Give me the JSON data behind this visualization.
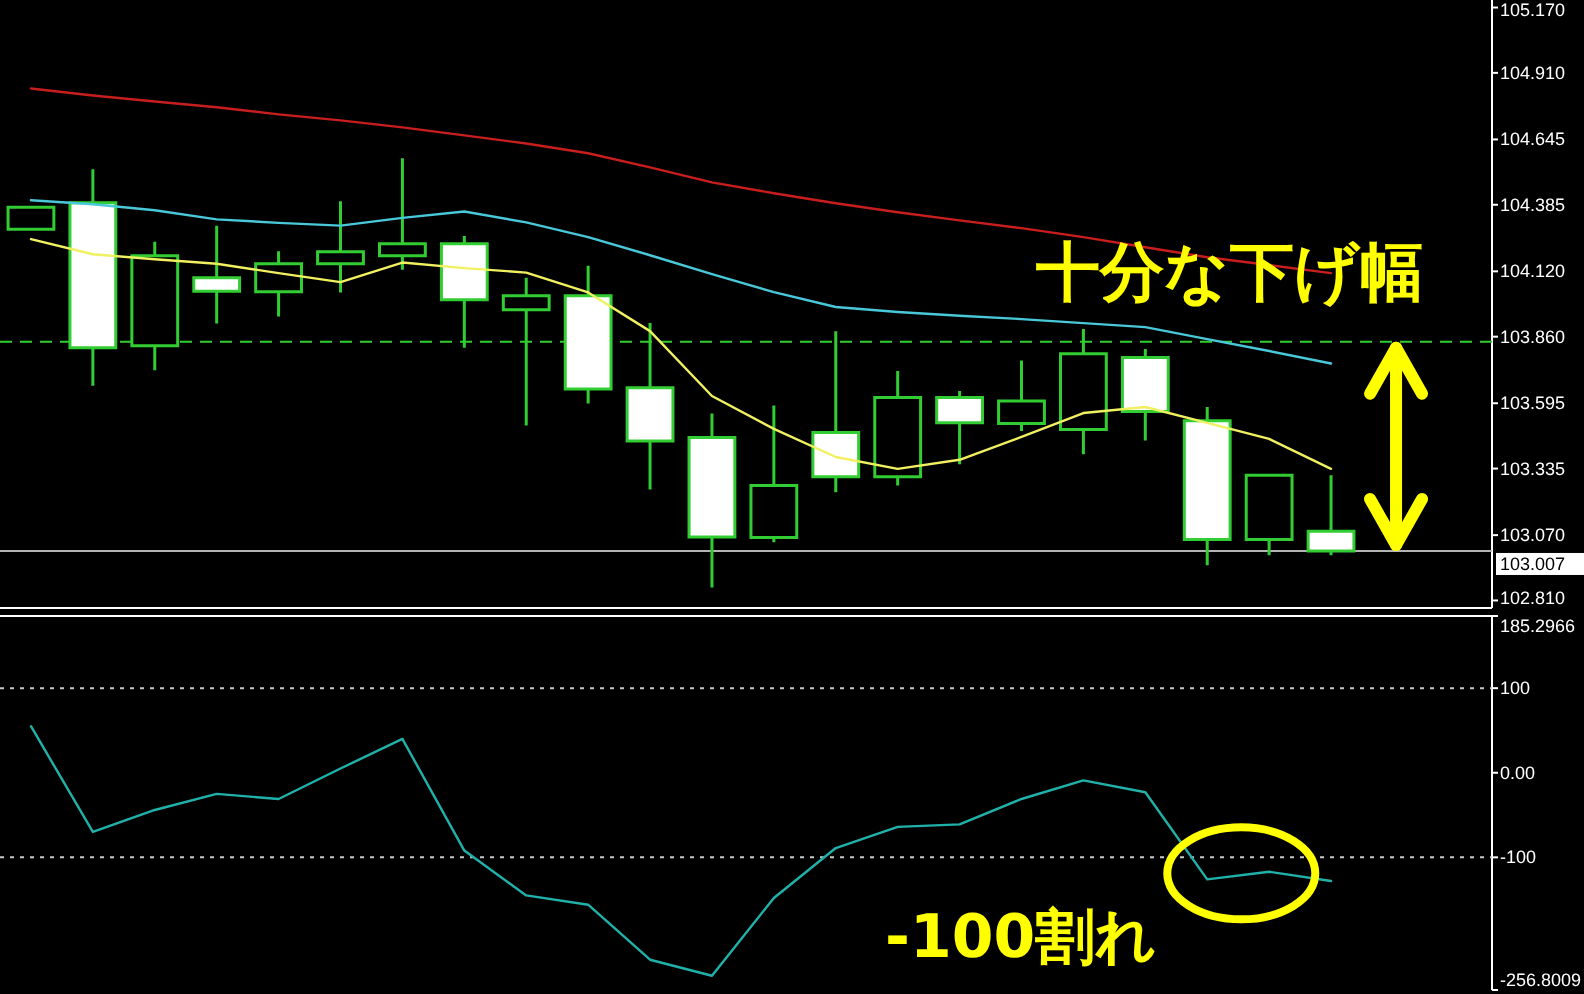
{
  "chart_data": [
    {
      "type": "candlestick",
      "categories": [
        null,
        null,
        null,
        null,
        null,
        null,
        null,
        null,
        null,
        null,
        null,
        null,
        null,
        null,
        null,
        null,
        null,
        null,
        null,
        null,
        null,
        null
      ],
      "ohlc": [
        [
          104.288,
          104.375,
          104.288,
          104.375
        ],
        [
          104.393,
          104.526,
          103.665,
          103.816
        ],
        [
          103.824,
          104.238,
          103.726,
          104.182
        ],
        [
          104.094,
          104.301,
          103.912,
          104.041
        ],
        [
          104.039,
          104.2,
          103.94,
          104.15
        ],
        [
          104.15,
          104.399,
          104.036,
          104.198
        ],
        [
          104.182,
          104.57,
          104.126,
          104.23
        ],
        [
          104.23,
          104.261,
          103.816,
          104.007
        ],
        [
          103.967,
          104.094,
          103.506,
          104.023
        ],
        [
          104.023,
          104.142,
          103.594,
          103.652
        ],
        [
          103.657,
          103.914,
          103.252,
          103.445
        ],
        [
          103.459,
          103.554,
          102.862,
          103.063
        ],
        [
          103.061,
          103.586,
          103.042,
          103.268
        ],
        [
          103.479,
          103.882,
          103.241,
          103.302
        ],
        [
          103.302,
          103.723,
          103.268,
          103.618
        ],
        [
          103.618,
          103.644,
          103.352,
          103.517
        ],
        [
          103.514,
          103.765,
          103.485,
          103.604
        ],
        [
          103.49,
          103.89,
          103.392,
          103.792
        ],
        [
          103.777,
          103.811,
          103.447,
          103.562
        ],
        [
          103.525,
          103.58,
          102.95,
          103.053
        ],
        [
          103.053,
          103.308,
          102.99,
          103.308
        ],
        [
          103.085,
          103.308,
          102.99,
          103.007
        ]
      ],
      "color": "#32cd32",
      "colors": [
        "#000000",
        "#ffffff",
        "#000000",
        "#ffffff",
        "#000000",
        "#000000",
        "#000000",
        "#ffffff",
        "#000000",
        "#ffffff",
        "#ffffff",
        "#ffffff",
        "#000000",
        "#ffffff",
        "#000000",
        "#ffffff",
        "#000000",
        "#000000",
        "#ffffff",
        "#ffffff",
        "#000000",
        "#ffffff"
      ],
      "series": [
        {
          "type": "line",
          "color": "#c81e1e",
          "values": [
            104.848,
            104.82,
            104.796,
            104.773,
            104.745,
            104.721,
            104.693,
            104.661,
            104.629,
            104.59,
            104.534,
            104.474,
            104.431,
            104.391,
            104.355,
            104.323,
            104.292,
            104.256,
            104.216,
            104.176,
            104.145,
            104.113
          ]
        },
        {
          "type": "line",
          "color": "#48c8d8",
          "values": [
            104.403,
            104.387,
            104.363,
            104.327,
            104.313,
            104.302,
            104.333,
            104.358,
            104.315,
            104.256,
            104.184,
            104.109,
            104.037,
            103.978,
            103.958,
            103.943,
            103.93,
            103.914,
            103.898,
            103.85,
            103.803,
            103.753
          ]
        },
        {
          "type": "line",
          "color": "#f0f060",
          "values": [
            104.248,
            104.188,
            104.168,
            104.15,
            104.113,
            104.077,
            104.155,
            104.133,
            104.115,
            104.036,
            103.882,
            103.624,
            103.493,
            103.381,
            103.334,
            103.37,
            103.461,
            103.556,
            103.58,
            103.517,
            103.453,
            103.334
          ]
        }
      ],
      "ylim": [
        102.78,
        105.2
      ],
      "yticks": [
        {
          "value": 105.17,
          "label": "105.170"
        },
        {
          "value": 104.91,
          "label": "104.910"
        },
        104.645,
        104.385,
        {
          "value": 104.12,
          "label": "104.120"
        },
        {
          "value": 103.86,
          "label": "103.860"
        },
        103.595,
        103.335,
        {
          "value": 103.07,
          "label": "103.070"
        },
        {
          "value": 102.81,
          "label": "102.810"
        }
      ],
      "tick_labels": "y",
      "ref_lines": [
        {
          "axis": "y",
          "value": 103.84,
          "color": "#32cd32",
          "line_style": "dashed"
        },
        {
          "axis": "y",
          "value": 103.007,
          "label": "103.007",
          "color": "#b4b4b4"
        }
      ],
      "annotations": [
        "十分な下げ幅"
      ]
    },
    {
      "type": "line",
      "categories": [
        null,
        null,
        null,
        null,
        null,
        null,
        null,
        null,
        null,
        null,
        null,
        null,
        null,
        null,
        null,
        null,
        null,
        null,
        null,
        null,
        null,
        null
      ],
      "series": [
        {
          "color": "#20b2aa",
          "values": [
            55,
            -70,
            -44,
            -25,
            -31,
            5,
            40,
            -92,
            -145,
            -156,
            -221,
            -240,
            -148,
            -89,
            -64,
            -61,
            -31,
            -9,
            -23,
            -126,
            -117,
            -128
          ]
        }
      ],
      "ylim": [
        -256.8009,
        185.2966
      ],
      "yticks": [
        185.2966,
        100,
        {
          "value": 0,
          "label": "0.00"
        },
        -100,
        -256.8009
      ],
      "tick_labels": "y",
      "ref_lines": [
        {
          "axis": "y",
          "value": 100,
          "color": "#c8c8c8",
          "line_style": "dotted"
        },
        {
          "axis": "y",
          "value": -100,
          "color": "#c8c8c8",
          "line_style": "dotted"
        }
      ],
      "annotations": [
        "-100割れ"
      ]
    }
  ]
}
